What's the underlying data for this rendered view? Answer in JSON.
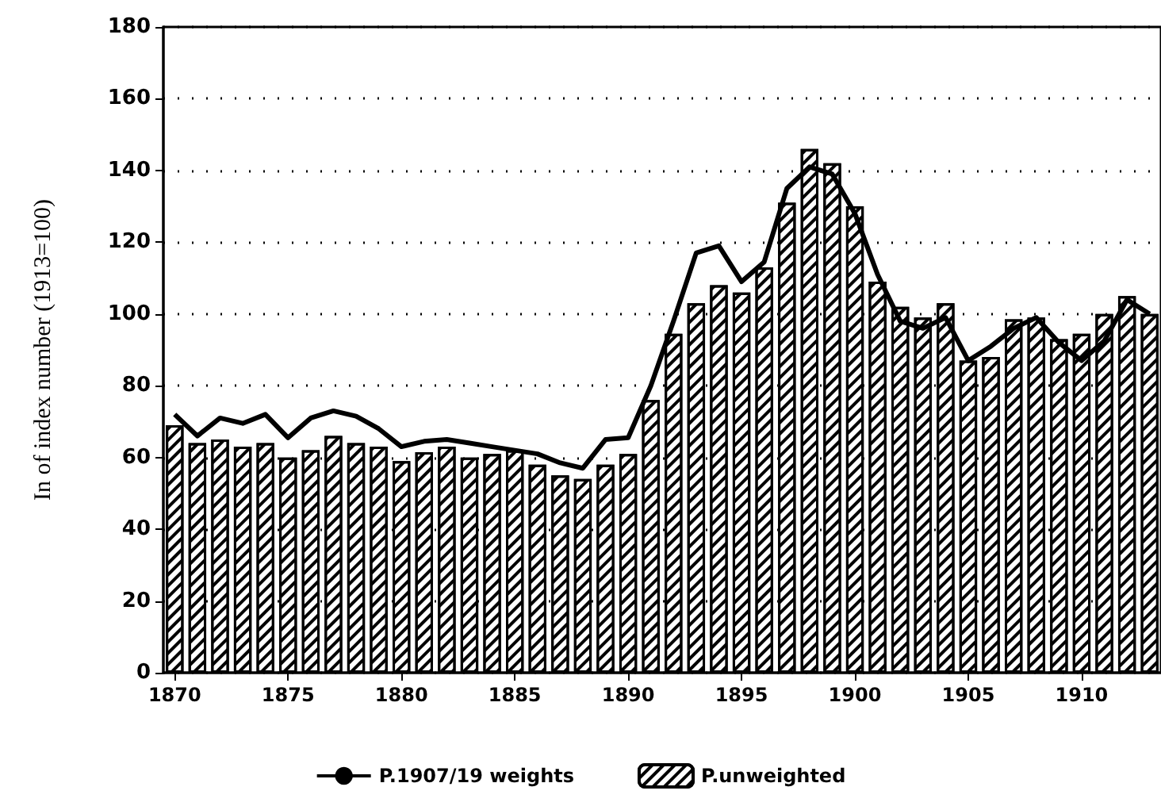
{
  "chart_data": {
    "type": "bar",
    "ylabel": "In of index number (1913=100)",
    "categories": [
      "1870",
      null,
      null,
      null,
      null,
      "1875",
      null,
      null,
      null,
      null,
      "1880",
      null,
      null,
      null,
      null,
      "1885",
      null,
      null,
      null,
      null,
      "1890",
      null,
      null,
      null,
      null,
      "1895",
      null,
      null,
      null,
      null,
      "1900",
      null,
      null,
      null,
      null,
      "1905",
      null,
      null,
      null,
      null,
      "1910",
      null,
      null,
      null
    ],
    "series": [
      {
        "name": "P.1907/19 weights",
        "type": "line",
        "color": "#000000",
        "values": [
          72,
          66,
          71,
          69.5,
          72,
          65.5,
          71,
          73,
          71.5,
          68,
          63,
          64.5,
          65,
          64,
          63,
          62,
          61,
          58.5,
          57,
          65,
          65.5,
          80,
          98,
          117,
          119,
          109,
          114.5,
          135,
          141,
          139,
          128,
          111,
          98,
          96,
          99,
          87,
          91,
          96,
          99,
          92,
          87,
          92.5,
          104,
          100
        ]
      },
      {
        "name": "P.unweighted",
        "color": "#000000",
        "values": [
          69,
          64,
          65,
          63,
          64,
          60,
          62,
          66,
          64,
          63,
          59,
          61.5,
          63,
          60,
          61,
          62,
          58,
          55,
          54,
          58,
          61,
          76,
          94.5,
          103,
          108,
          106,
          113,
          131,
          146,
          142,
          130,
          109,
          102,
          99,
          103,
          87,
          88,
          98.5,
          99,
          93,
          94.5,
          100,
          105,
          100
        ]
      }
    ],
    "ylim": [
      0,
      180
    ],
    "yticks": [
      0,
      20,
      40,
      60,
      80,
      100,
      120,
      140,
      160,
      180
    ],
    "grid": "y",
    "legend": "bottom",
    "marker": "none",
    "line_style": "solid"
  }
}
